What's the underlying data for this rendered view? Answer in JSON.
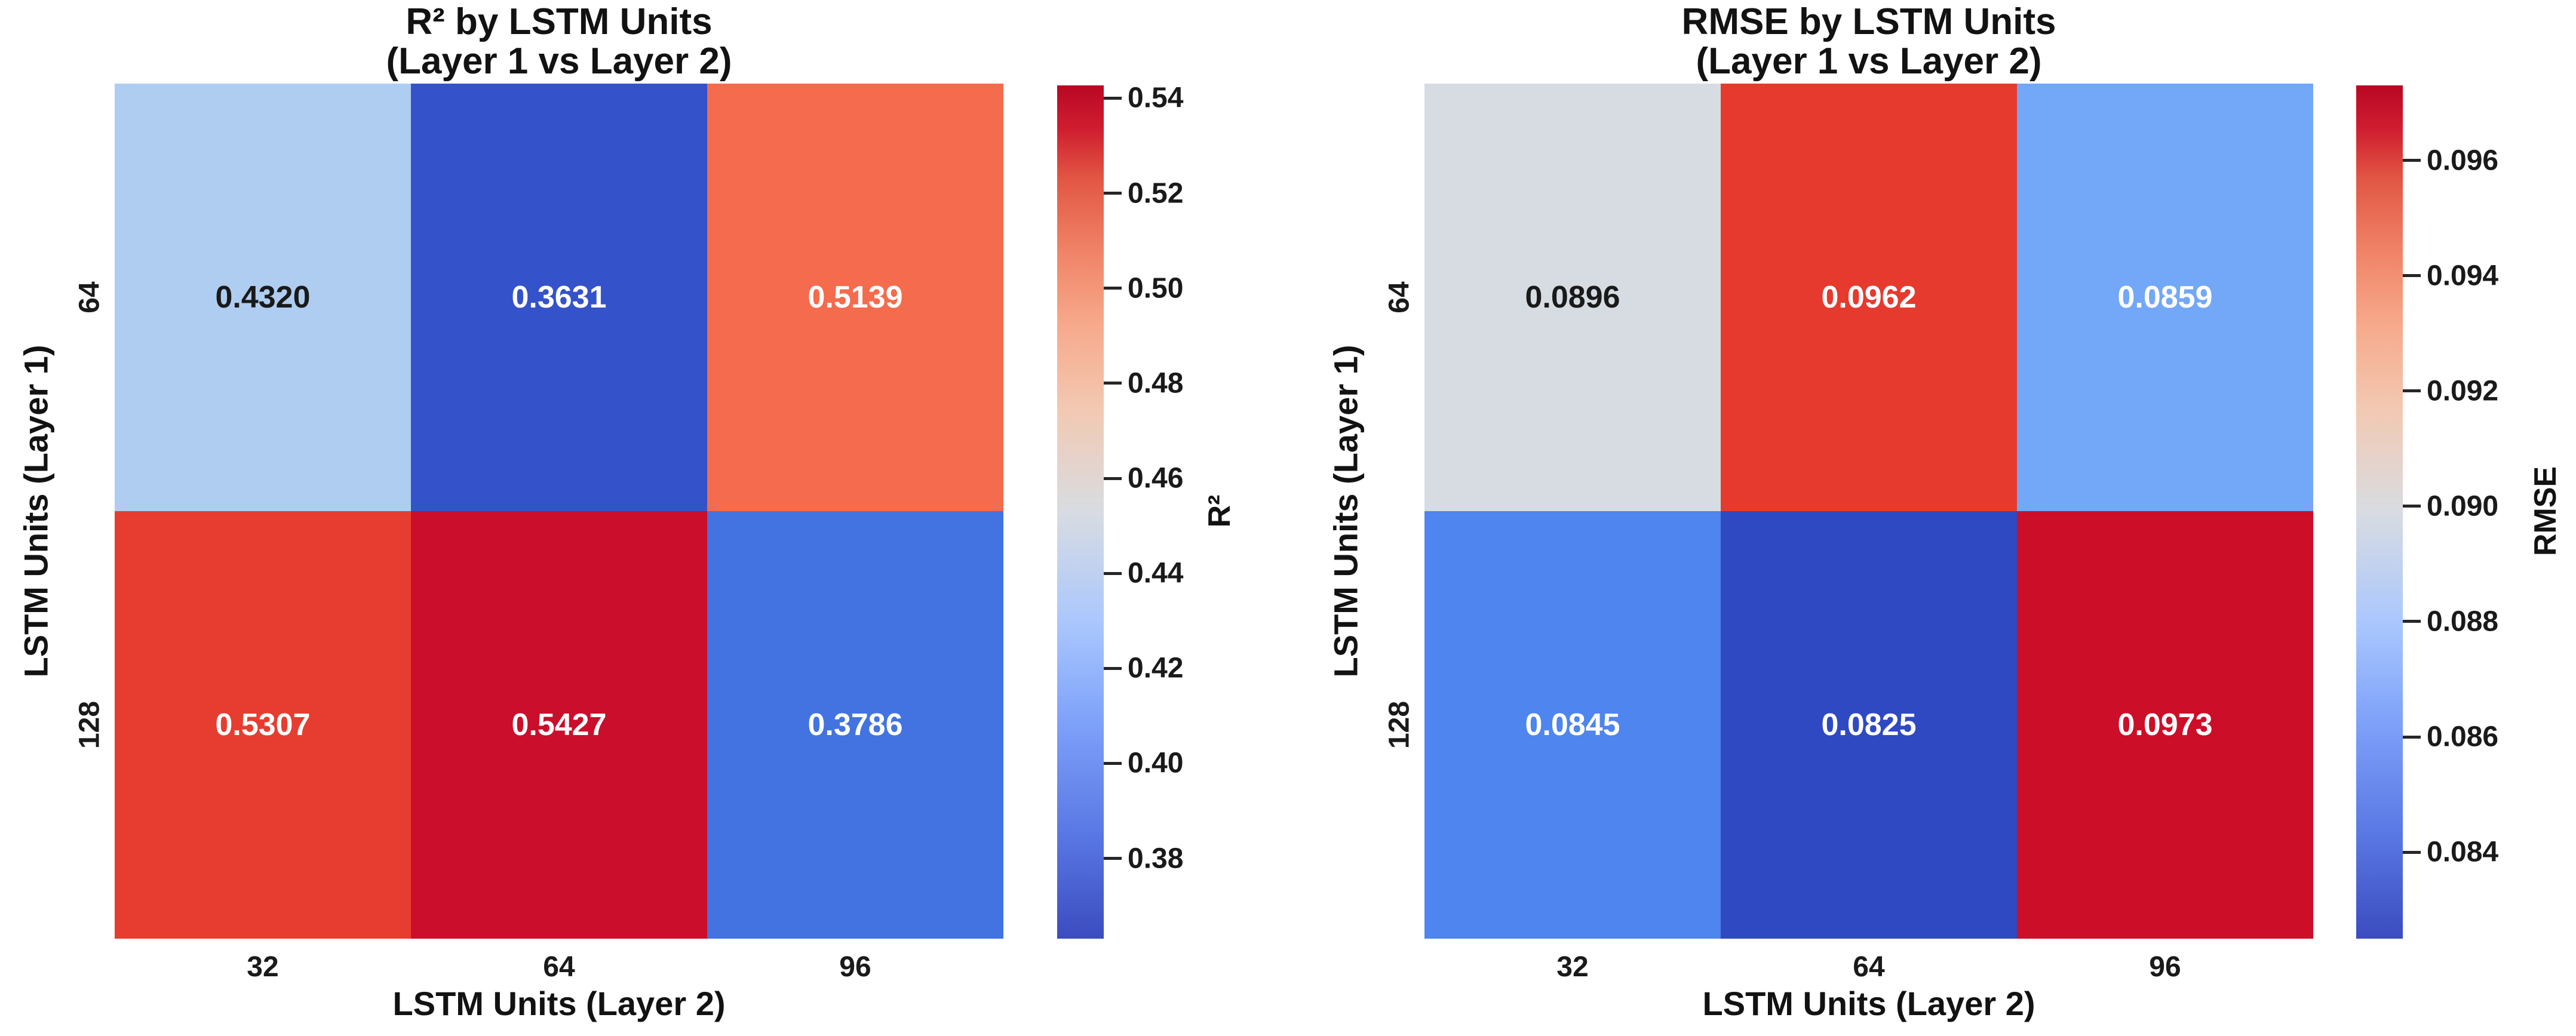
{
  "figure": {
    "background": "#ffffff"
  },
  "chart_data": [
    {
      "type": "heatmap",
      "title_line1": "R² by LSTM Units",
      "title_line2": "(Layer 1 vs Layer 2)",
      "xlabel": "LSTM Units (Layer 2)",
      "ylabel": "LSTM Units (Layer 1)",
      "x_categories": [
        "32",
        "64",
        "96"
      ],
      "y_categories": [
        "64",
        "128"
      ],
      "values": [
        [
          0.432,
          0.3631,
          0.5139
        ],
        [
          0.5307,
          0.5427,
          0.3786
        ]
      ],
      "annotations": [
        [
          "0.4320",
          "0.3631",
          "0.5139"
        ],
        [
          "0.5307",
          "0.5427",
          "0.3786"
        ]
      ],
      "cell_colors": [
        [
          "#aecdf0",
          "#3452c9",
          "#f56b4d"
        ],
        [
          "#e73d30",
          "#ca0e2b",
          "#4273e1"
        ]
      ],
      "text_colors": [
        [
          "#1a1a1a",
          "#ffffff",
          "#ffffff"
        ],
        [
          "#ffffff",
          "#ffffff",
          "#ffffff"
        ]
      ],
      "colorbar": {
        "label": "R²",
        "vmin": 0.3631,
        "vmax": 0.5427,
        "ticks": [
          {
            "value": 0.54,
            "label": "0.54"
          },
          {
            "value": 0.52,
            "label": "0.52"
          },
          {
            "value": 0.5,
            "label": "0.50"
          },
          {
            "value": 0.48,
            "label": "0.48"
          },
          {
            "value": 0.46,
            "label": "0.46"
          },
          {
            "value": 0.44,
            "label": "0.44"
          },
          {
            "value": 0.42,
            "label": "0.42"
          },
          {
            "value": 0.4,
            "label": "0.40"
          },
          {
            "value": 0.38,
            "label": "0.38"
          }
        ],
        "gradient_stops": [
          "#3b4cc0 0%",
          "#5977e3 12%",
          "#7da0f9 25%",
          "#aac7fd 37%",
          "#d8dce2 50%",
          "#f2c9b2 62%",
          "#f7a98b 72%",
          "#ef8165 81%",
          "#e25744 89%",
          "#cf1d2f 95%",
          "#b90724 100%"
        ]
      }
    },
    {
      "type": "heatmap",
      "title_line1": "RMSE by LSTM Units",
      "title_line2": "(Layer 1 vs Layer 2)",
      "xlabel": "LSTM Units (Layer 2)",
      "ylabel": "LSTM Units (Layer 1)",
      "x_categories": [
        "32",
        "64",
        "96"
      ],
      "y_categories": [
        "64",
        "128"
      ],
      "values": [
        [
          0.0896,
          0.0962,
          0.0859
        ],
        [
          0.0845,
          0.0825,
          0.0973
        ]
      ],
      "annotations": [
        [
          "0.0896",
          "0.0962",
          "0.0859"
        ],
        [
          "0.0845",
          "0.0825",
          "0.0973"
        ]
      ],
      "cell_colors": [
        [
          "#d7dce3",
          "#e63a2e",
          "#73a7f8"
        ],
        [
          "#4e85ee",
          "#2e49c1",
          "#cd0e29"
        ]
      ],
      "text_colors": [
        [
          "#1a1a1a",
          "#ffffff",
          "#ffffff"
        ],
        [
          "#ffffff",
          "#ffffff",
          "#ffffff"
        ]
      ],
      "colorbar": {
        "label": "RMSE",
        "vmin": 0.0825,
        "vmax": 0.0973,
        "ticks": [
          {
            "value": 0.096,
            "label": "0.096"
          },
          {
            "value": 0.094,
            "label": "0.094"
          },
          {
            "value": 0.092,
            "label": "0.092"
          },
          {
            "value": 0.09,
            "label": "0.090"
          },
          {
            "value": 0.088,
            "label": "0.088"
          },
          {
            "value": 0.086,
            "label": "0.086"
          },
          {
            "value": 0.084,
            "label": "0.084"
          }
        ],
        "gradient_stops": [
          "#3b4cc0 0%",
          "#5977e3 12%",
          "#7da0f9 25%",
          "#aac7fd 37%",
          "#d8dce2 50%",
          "#f2c9b2 62%",
          "#f7a98b 72%",
          "#ef8165 81%",
          "#e25744 89%",
          "#cf1d2f 95%",
          "#b90724 100%"
        ]
      }
    }
  ]
}
